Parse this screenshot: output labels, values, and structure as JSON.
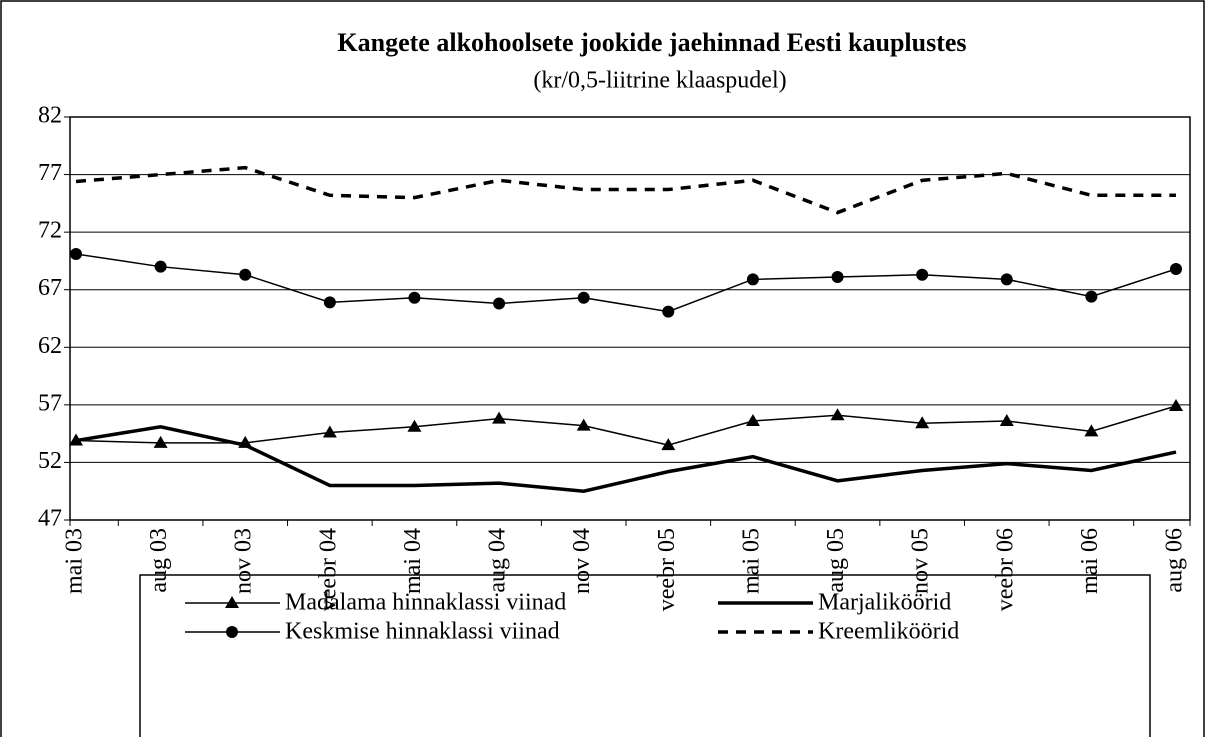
{
  "chart_data": {
    "type": "line",
    "title": "Kangete alkohoolsete jookide jaehinnad Eesti kauplustes",
    "subtitle": "(kr/0,5-liitrine klaaspudel)",
    "categories": [
      "mai 03",
      "aug 03",
      "nov 03",
      "veebr 04",
      "mai 04",
      "aug 04",
      "nov 04",
      "veebr 05",
      "mai 05",
      "aug 05",
      "nov 05",
      "veebr 06",
      "mai 06",
      "aug 06"
    ],
    "series": [
      {
        "name": "Madalama hinnaklassi viinad",
        "color": "#000000",
        "marker": "triangle",
        "dashed": false,
        "width": 1.5,
        "values": [
          53.9,
          53.7,
          53.7,
          54.6,
          55.1,
          55.8,
          55.2,
          53.5,
          55.6,
          56.1,
          55.4,
          55.6,
          54.7,
          56.9
        ]
      },
      {
        "name": "Marjaliköörid",
        "color": "#000000",
        "marker": "none",
        "dashed": false,
        "width": 3.5,
        "values": [
          53.9,
          55.1,
          53.5,
          50.0,
          50.0,
          50.2,
          49.5,
          51.2,
          52.5,
          50.4,
          51.3,
          51.9,
          51.3,
          52.9
        ]
      },
      {
        "name": "Keskmise hinnaklassi viinad",
        "color": "#000000",
        "marker": "circle",
        "dashed": false,
        "width": 1.5,
        "values": [
          70.1,
          69.0,
          68.3,
          65.9,
          66.3,
          65.8,
          66.3,
          65.1,
          67.9,
          68.1,
          68.3,
          67.9,
          66.4,
          68.8
        ]
      },
      {
        "name": "Kreemliköörid",
        "color": "#000000",
        "marker": "none",
        "dashed": true,
        "width": 3.5,
        "values": [
          76.4,
          77.0,
          77.6,
          75.2,
          75.0,
          76.5,
          75.7,
          75.7,
          76.5,
          73.7,
          76.5,
          77.1,
          75.2,
          75.2
        ]
      }
    ],
    "ylim": [
      47,
      82
    ],
    "yticks": [
      47,
      52,
      57,
      62,
      67,
      72,
      77,
      82
    ],
    "grid": true
  }
}
